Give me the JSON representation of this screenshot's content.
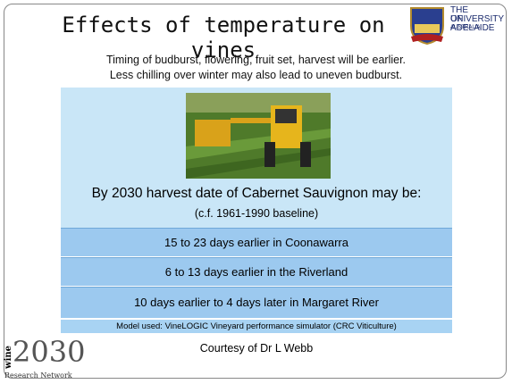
{
  "title": "Effects of temperature on vines",
  "logo": {
    "line1": "THE UNIVERSITY",
    "line2": "OF ADELAIDE",
    "line3": "AUSTRALIA"
  },
  "intro": [
    "Timing of budburst, flowering, fruit set, harvest will be earlier.",
    "Less chilling over winter may also lead to uneven budburst."
  ],
  "heading": "By 2030 harvest date of Cabernet Sauvignon may be:",
  "baseline": "(c.f. 1961-1990 baseline)",
  "projections": [
    "15 to 23 days earlier in Coonawarra",
    "6 to 13 days earlier in the Riverland",
    "10 days earlier to 4 days later in Margaret River"
  ],
  "model": "Model used: VineLOGIC Vineyard performance simulator (CRC Viticulture)",
  "courtesy": "Courtesy of Dr L Webb",
  "footer_logo": {
    "word": "wine",
    "number": "2030",
    "tagline": "Research Network"
  }
}
